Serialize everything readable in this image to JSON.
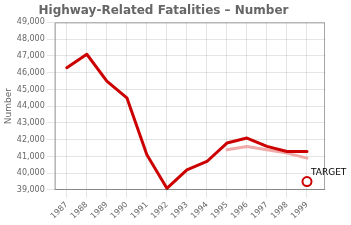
{
  "chart_data": {
    "type": "line",
    "title": "Highway-Related Fatalities – Number",
    "x": [
      1987,
      1988,
      1989,
      1990,
      1991,
      1992,
      1993,
      1994,
      1995,
      1996,
      1997,
      1998,
      1999
    ],
    "series": [
      {
        "color": "#cc0000",
        "values": [
          46300,
          47100,
          45500,
          44500,
          41100,
          39100,
          40200,
          40700,
          41800,
          42100,
          41600,
          41300,
          41300
        ]
      },
      {
        "color": "#f0aaaa",
        "values": [
          null,
          null,
          null,
          null,
          null,
          null,
          null,
          null,
          41400,
          41600,
          41400,
          41200,
          40900
        ]
      }
    ],
    "ylabel": "Number",
    "xlim": [
      1986.4,
      1999.9
    ],
    "xticks": [
      1987,
      1988,
      1989,
      1990,
      1991,
      1992,
      1993,
      1994,
      1995,
      1996,
      1997,
      1998,
      1999
    ],
    "ylim": [
      39000,
      49000
    ],
    "yticks": [
      {
        "value": 39000,
        "label": "39,000"
      },
      {
        "value": 40000,
        "label": "40,000"
      },
      {
        "value": 41000,
        "label": "41,000"
      },
      {
        "value": 42000,
        "label": "42,000"
      },
      {
        "value": 43000,
        "label": "43,000"
      },
      {
        "value": 44000,
        "label": "44,000"
      },
      {
        "value": 45000,
        "label": "45,000"
      },
      {
        "value": 46000,
        "label": "46,000"
      },
      {
        "value": 47000,
        "label": "47,000"
      },
      {
        "value": 48000,
        "label": "48,000"
      },
      {
        "value": 49000,
        "label": "49,000"
      }
    ],
    "grid": true,
    "annotations": [
      {
        "text": "TARGET",
        "x": 1999,
        "y": 39500,
        "color": "#cc0000",
        "marker": "circle"
      }
    ]
  }
}
